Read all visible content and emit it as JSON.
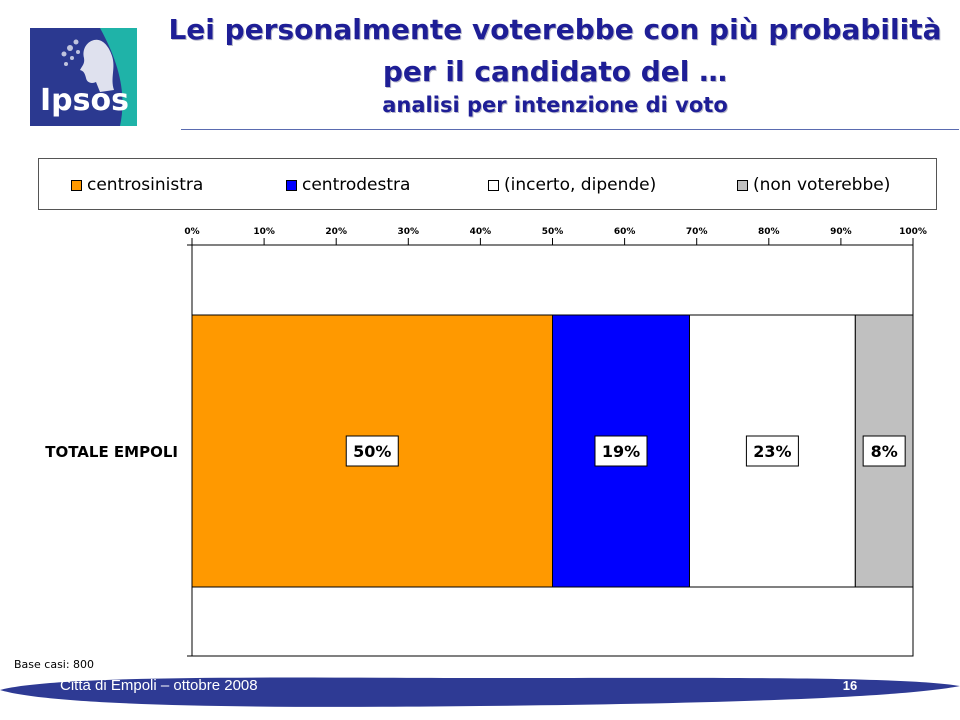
{
  "header": {
    "title_line1": "Lei personalmente voterebbe con più probabilità",
    "title_line2": "per il candidato del …",
    "subtitle": "analisi per intenzione di voto",
    "logo_text": "Ipsos",
    "logo_color": "#2b3990",
    "logo_accent": "#1fb3a8"
  },
  "chart_data": {
    "type": "bar",
    "orientation": "horizontal",
    "stacked": true,
    "categories": [
      "TOTALE EMPOLI"
    ],
    "series": [
      {
        "name": "centrosinistra",
        "values": [
          50
        ],
        "label": "50%",
        "color": "#ff9900"
      },
      {
        "name": "centrodestra",
        "values": [
          19
        ],
        "label": "19%",
        "color": "#0000ff"
      },
      {
        "name": "(incerto, dipende)",
        "values": [
          23
        ],
        "label": "23%",
        "color": "#ffffff"
      },
      {
        "name": "(non voterebbe)",
        "values": [
          8
        ],
        "label": "8%",
        "color": "#c0c0c0"
      }
    ],
    "xlim": [
      0,
      100
    ],
    "ticks": [
      "0%",
      "10%",
      "20%",
      "30%",
      "40%",
      "50%",
      "60%",
      "70%",
      "80%",
      "90%",
      "100%"
    ],
    "legend_position": "top",
    "grid": false
  },
  "footer": {
    "base_note": "Base casi: 800",
    "source": "Città di Empoli – ottobre 2008",
    "page_number": "16",
    "bar_color": "#2e3a94"
  }
}
